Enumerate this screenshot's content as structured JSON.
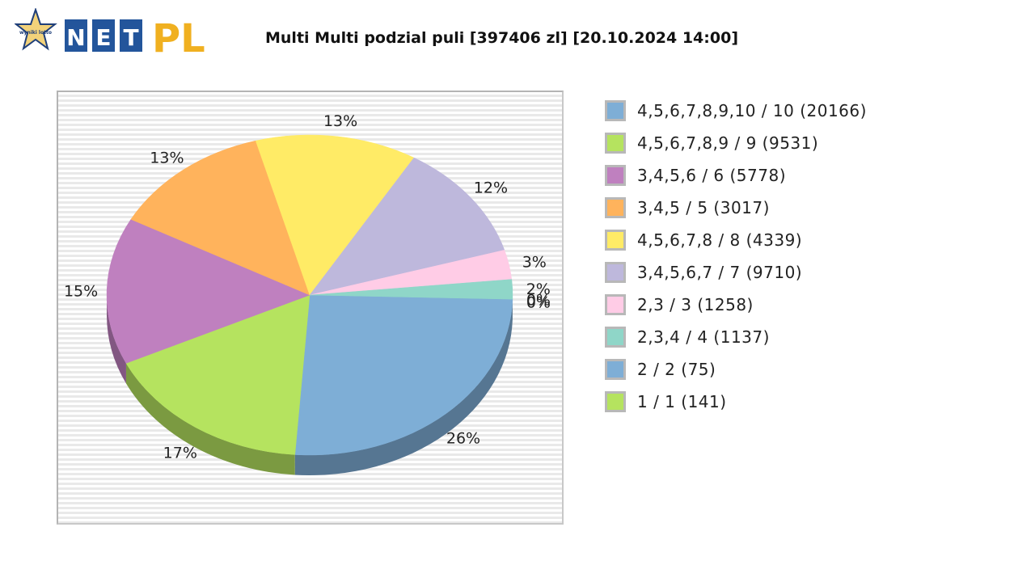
{
  "header": {
    "logo_text": "NET PL",
    "logo_badge_text": "wyniki lotto",
    "title": "Multi Multi podzial puli [397406 zl] [20.10.2024 14:00]"
  },
  "chart_data": {
    "type": "pie",
    "style": "3d",
    "title": "Multi Multi podzial puli [397406 zl] [20.10.2024 14:00]",
    "grid": true,
    "legend_position": "right",
    "slices": [
      {
        "label": "4,5,6,7,8,9,10 / 10 (20166)",
        "value": 26,
        "display": "26%",
        "color": "#7eaed6"
      },
      {
        "label": "4,5,6,7,8,9 / 9 (9531)",
        "value": 17,
        "display": "17%",
        "color": "#b5e35f"
      },
      {
        "label": "3,4,5,6 / 6 (5778)",
        "value": 15,
        "display": "15%",
        "color": "#bf80bf"
      },
      {
        "label": "3,4,5 / 5 (3017)",
        "value": 13,
        "display": "13%",
        "color": "#ffb35c"
      },
      {
        "label": "4,5,6,7,8 / 8 (4339)",
        "value": 13,
        "display": "13%",
        "color": "#ffeb66"
      },
      {
        "label": "3,4,5,6,7 / 7 (9710)",
        "value": 12,
        "display": "12%",
        "color": "#beb8dc"
      },
      {
        "label": "2,3 / 3 (1258)",
        "value": 3,
        "display": "3%",
        "color": "#ffcce6"
      },
      {
        "label": "2,3,4 / 4 (1137)",
        "value": 2,
        "display": "2%",
        "color": "#8fd6c8"
      },
      {
        "label": "2 / 2 (75)",
        "value": 0,
        "display": "0%",
        "color": "#7eaed6"
      },
      {
        "label": "1 / 1 (141)",
        "value": 0,
        "display": "0%",
        "color": "#b5e35f"
      }
    ]
  }
}
